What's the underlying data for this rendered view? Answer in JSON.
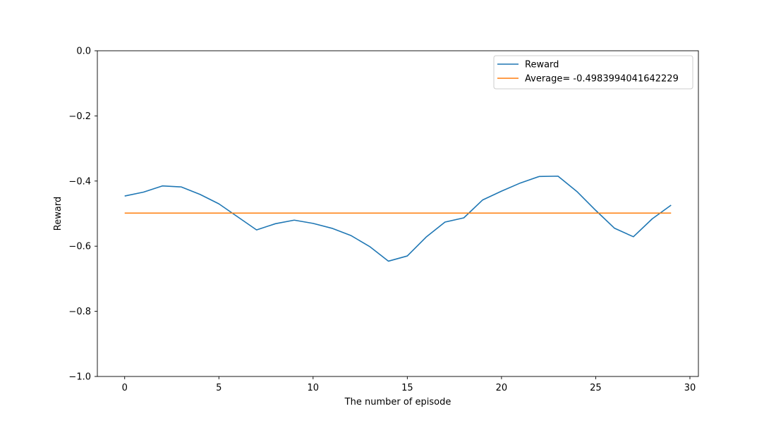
{
  "chart_data": {
    "type": "line",
    "title": "",
    "xlabel": "The number of episode",
    "ylabel": "Reward",
    "xlim": [
      -1.45,
      30.45
    ],
    "ylim": [
      -1.0,
      0.0
    ],
    "xticks": [
      0,
      5,
      10,
      15,
      20,
      25,
      30
    ],
    "yticks": [
      -1.0,
      -0.8,
      -0.6,
      -0.4,
      -0.2,
      0.0
    ],
    "xtick_labels": [
      "0",
      "5",
      "10",
      "15",
      "20",
      "25",
      "30"
    ],
    "ytick_labels": [
      "−1.0",
      "−0.8",
      "−0.6",
      "−0.4",
      "−0.2",
      "0.0"
    ],
    "grid": false,
    "legend_position": "top-right",
    "x": [
      0,
      1,
      2,
      3,
      4,
      5,
      6,
      7,
      8,
      9,
      10,
      11,
      12,
      13,
      14,
      15,
      16,
      17,
      18,
      19,
      20,
      21,
      22,
      23,
      24,
      25,
      26,
      27,
      28,
      29
    ],
    "series": [
      {
        "name": "Reward",
        "color": "#1f77b4",
        "values": [
          -0.446,
          -0.434,
          -0.415,
          -0.418,
          -0.441,
          -0.47,
          -0.51,
          -0.55,
          -0.531,
          -0.52,
          -0.53,
          -0.545,
          -0.567,
          -0.601,
          -0.646,
          -0.63,
          -0.572,
          -0.526,
          -0.513,
          -0.458,
          -0.431,
          -0.406,
          -0.386,
          -0.385,
          -0.432,
          -0.49,
          -0.545,
          -0.571,
          -0.516,
          -0.474
        ]
      },
      {
        "name": "Average= -0.4983994041642229",
        "color": "#ff7f0e",
        "values": [
          -0.4983994041642229,
          -0.4983994041642229,
          -0.4983994041642229,
          -0.4983994041642229,
          -0.4983994041642229,
          -0.4983994041642229,
          -0.4983994041642229,
          -0.4983994041642229,
          -0.4983994041642229,
          -0.4983994041642229,
          -0.4983994041642229,
          -0.4983994041642229,
          -0.4983994041642229,
          -0.4983994041642229,
          -0.4983994041642229,
          -0.4983994041642229,
          -0.4983994041642229,
          -0.4983994041642229,
          -0.4983994041642229,
          -0.4983994041642229,
          -0.4983994041642229,
          -0.4983994041642229,
          -0.4983994041642229,
          -0.4983994041642229,
          -0.4983994041642229,
          -0.4983994041642229,
          -0.4983994041642229,
          -0.4983994041642229,
          -0.4983994041642229,
          -0.4983994041642229
        ]
      }
    ]
  }
}
